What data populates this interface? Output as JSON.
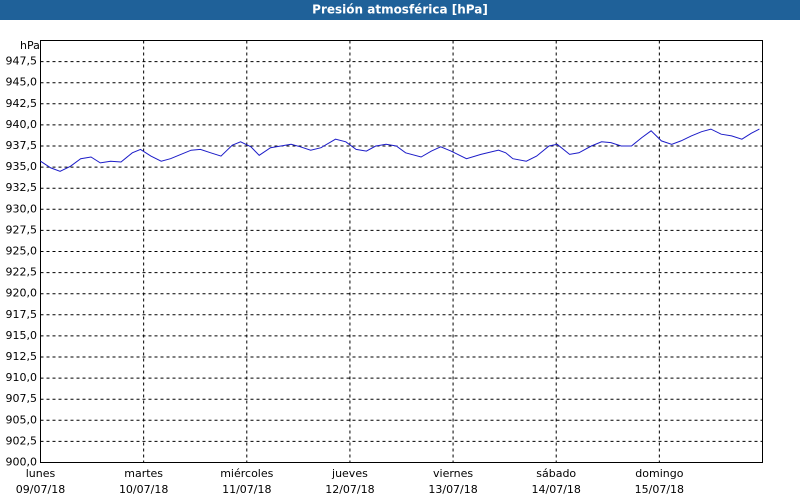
{
  "chart_data": {
    "type": "line",
    "title": "Presión atmosférica [hPa]",
    "y_label": "hPa",
    "xlim": [
      0,
      7
    ],
    "ylim": [
      900,
      950
    ],
    "xticks": [
      {
        "value": 0,
        "label": "lunes",
        "date": "09/07/18"
      },
      {
        "value": 1,
        "label": "martes",
        "date": "10/07/18"
      },
      {
        "value": 2,
        "label": "miércoles",
        "date": "11/07/18"
      },
      {
        "value": 3,
        "label": "jueves",
        "date": "12/07/18"
      },
      {
        "value": 4,
        "label": "viernes",
        "date": "13/07/18"
      },
      {
        "value": 5,
        "label": "sábado",
        "date": "14/07/18"
      },
      {
        "value": 6,
        "label": "domingo",
        "date": "15/07/18"
      }
    ],
    "yticks": [
      {
        "value": 900,
        "label": "900,0"
      },
      {
        "value": 902.5,
        "label": "902,5"
      },
      {
        "value": 905,
        "label": "905,0"
      },
      {
        "value": 907.5,
        "label": "907,5"
      },
      {
        "value": 910,
        "label": "910,0"
      },
      {
        "value": 912.5,
        "label": "912,5"
      },
      {
        "value": 915,
        "label": "915,0"
      },
      {
        "value": 917.5,
        "label": "917,5"
      },
      {
        "value": 920,
        "label": "920,0"
      },
      {
        "value": 922.5,
        "label": "922,5"
      },
      {
        "value": 925,
        "label": "925,0"
      },
      {
        "value": 927.5,
        "label": "927,5"
      },
      {
        "value": 930,
        "label": "930,0"
      },
      {
        "value": 932.5,
        "label": "932,5"
      },
      {
        "value": 935,
        "label": "935,0"
      },
      {
        "value": 937.5,
        "label": "937,5"
      },
      {
        "value": 940,
        "label": "940,0"
      },
      {
        "value": 942.5,
        "label": "942,5"
      },
      {
        "value": 945,
        "label": "945,0"
      },
      {
        "value": 947.5,
        "label": "947,5"
      }
    ],
    "grid": true,
    "series": [
      {
        "color": "#1c1cc8",
        "x": [
          0,
          0.1,
          0.19,
          0.29,
          0.39,
          0.49,
          0.58,
          0.68,
          0.78,
          0.89,
          0.97,
          1.07,
          1.17,
          1.26,
          1.36,
          1.46,
          1.55,
          1.65,
          1.75,
          1.86,
          1.94,
          2.04,
          2.12,
          2.23,
          2.33,
          2.43,
          2.52,
          2.62,
          2.72,
          2.86,
          2.96,
          3.06,
          3.16,
          3.25,
          3.35,
          3.45,
          3.54,
          3.69,
          3.79,
          3.88,
          3.98,
          4.13,
          4.27,
          4.44,
          4.51,
          4.58,
          4.71,
          4.81,
          4.93,
          5.01,
          5.13,
          5.22,
          5.34,
          5.44,
          5.53,
          5.63,
          5.73,
          5.83,
          5.92,
          6.02,
          6.12,
          6.21,
          6.31,
          6.41,
          6.5,
          6.6,
          6.7,
          6.8,
          6.89,
          6.97
        ],
        "values": [
          935.7,
          934.9,
          934.5,
          935.1,
          936.0,
          936.2,
          935.5,
          935.7,
          935.6,
          936.7,
          937.1,
          936.3,
          935.7,
          936.0,
          936.5,
          937.0,
          937.1,
          936.7,
          936.3,
          937.6,
          938.0,
          937.4,
          936.4,
          937.3,
          937.5,
          937.7,
          937.4,
          937.0,
          937.3,
          938.3,
          938.0,
          937.1,
          936.9,
          937.5,
          937.7,
          937.5,
          936.7,
          936.2,
          936.9,
          937.4,
          936.9,
          936.0,
          936.5,
          937.0,
          936.7,
          936.0,
          935.7,
          936.3,
          937.5,
          937.7,
          936.5,
          936.7,
          937.5,
          938.0,
          937.9,
          937.5,
          937.5,
          938.5,
          939.3,
          938.1,
          937.7,
          938.1,
          938.7,
          939.2,
          939.5,
          938.9,
          938.7,
          938.3,
          939.0,
          939.5
        ]
      }
    ]
  }
}
